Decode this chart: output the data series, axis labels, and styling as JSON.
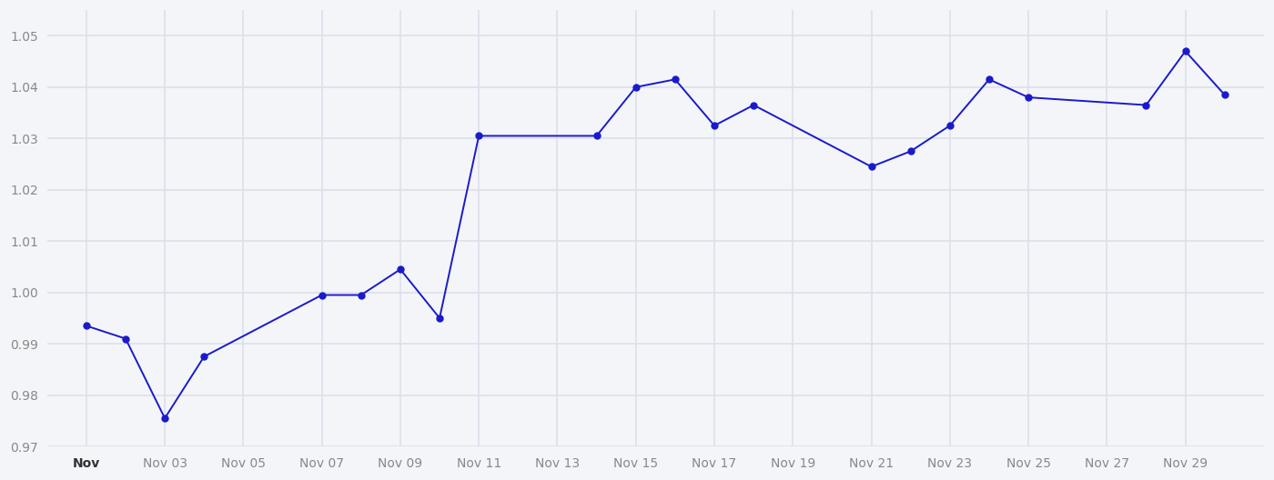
{
  "day_positions": [
    1,
    2,
    3,
    4,
    7,
    8,
    9,
    10,
    11,
    14,
    15,
    16,
    17,
    18,
    21,
    22,
    23,
    24,
    25,
    28,
    29,
    30
  ],
  "values": [
    0.9935,
    0.991,
    0.9755,
    0.9875,
    0.9995,
    0.9995,
    1.0045,
    0.995,
    1.0305,
    1.0305,
    1.04,
    1.0415,
    1.0325,
    1.0365,
    1.0245,
    1.0275,
    1.0325,
    1.0415,
    1.038,
    1.0365,
    1.047,
    1.0385
  ],
  "x_tick_positions": [
    1,
    3,
    5,
    7,
    9,
    11,
    13,
    15,
    17,
    19,
    21,
    23,
    25,
    27,
    29
  ],
  "x_tick_labels": [
    "Nov",
    "Nov 03",
    "Nov 05",
    "Nov 07",
    "Nov 09",
    "Nov 11",
    "Nov 13",
    "Nov 15",
    "Nov 17",
    "Nov 19",
    "Nov 21",
    "Nov 23",
    "Nov 25",
    "Nov 27",
    "Nov 29"
  ],
  "ylim": [
    0.97,
    1.055
  ],
  "yticks": [
    0.97,
    0.98,
    0.99,
    1.0,
    1.01,
    1.02,
    1.03,
    1.04,
    1.05
  ],
  "xlim_min": 0.0,
  "xlim_max": 31.0,
  "line_color": "#1a1acc",
  "marker_color": "#1a1acc",
  "bg_color": "#f4f5f9",
  "grid_color": "#dde0ea",
  "tick_color": "#888888",
  "first_tick_color": "#333333"
}
